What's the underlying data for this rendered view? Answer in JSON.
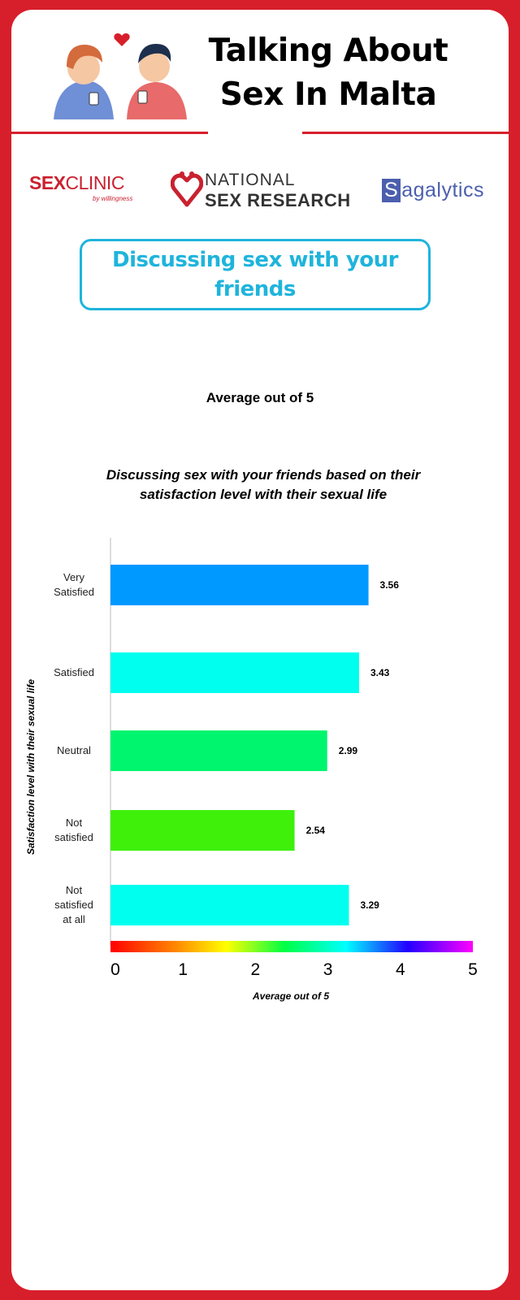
{
  "header": {
    "title_line1": "Talking About",
    "title_line2": "Sex In Malta"
  },
  "logos": {
    "sexclinic_bold": "SEX",
    "sexclinic_rest": "CLINIC",
    "sexclinic_sub": "by willingness",
    "nsr_line1": "NATIONAL",
    "nsr_line2": "SEX RESEARCH",
    "sagalytics_first": "S",
    "sagalytics_rest": "agalytics"
  },
  "section": {
    "title": "Discussing sex with your friends"
  },
  "metric_label": "Average out of 5",
  "colors": {
    "brand_red": "#d71f2b",
    "accent_cyan": "#1fb4dc"
  },
  "chart_data": {
    "type": "bar",
    "orientation": "horizontal",
    "title_line1": "Discussing sex with your friends based on their",
    "title_line2": "satisfaction level with their sexual life",
    "xlabel": "Average out of 5",
    "ylabel": "Satisfaction level with their sexual life",
    "xlim": [
      0,
      5
    ],
    "ticks": [
      "0",
      "1",
      "2",
      "3",
      "4",
      "5"
    ],
    "categories": [
      [
        "Very",
        "Satisfied"
      ],
      [
        "Satisfied"
      ],
      [
        "Neutral"
      ],
      [
        "Not",
        "satisfied"
      ],
      [
        "Not",
        "satisfied",
        "at all"
      ]
    ],
    "values": [
      3.56,
      3.43,
      2.99,
      2.54,
      3.29
    ],
    "value_labels": [
      "3.56",
      "3.43",
      "2.99",
      "2.54",
      "3.29"
    ],
    "bar_colors": [
      "#0099ff",
      "#00ffee",
      "#00f56e",
      "#3ef00a",
      "#00ffee"
    ],
    "color_scale": "rainbow 0 to 5",
    "grid": false,
    "legend": "none"
  }
}
